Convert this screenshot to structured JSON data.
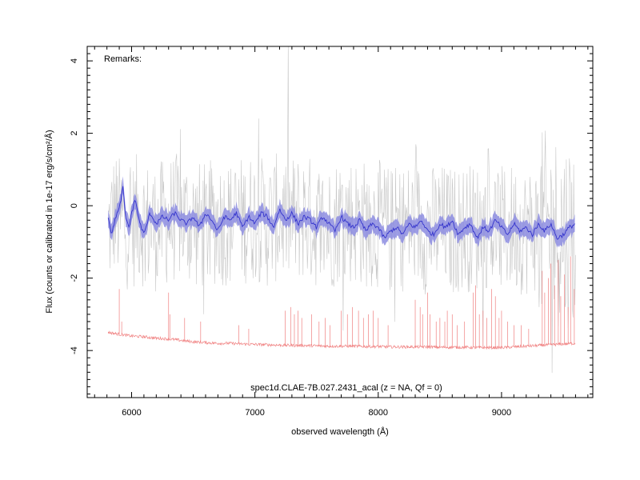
{
  "chart_data": {
    "type": "line",
    "title": "spec1d.CLAE-7B.027.2431_acal (z =   NA, Qf = 0)",
    "remarks": "Remarks:",
    "xlabel": "observed wavelength (Å)",
    "ylabel": "Flux (counts or calibrated in 1e-17 erg/s/cm²/Å)",
    "xlim": [
      5640,
      9740
    ],
    "ylim": [
      -5.3,
      4.4
    ],
    "x_ticks": [
      6000,
      7000,
      8000,
      9000
    ],
    "y_ticks": [
      4,
      2,
      0,
      -2,
      -4
    ],
    "grid": false,
    "colors": {
      "raw": "#c8c8c8",
      "smoothed": "#3333cc",
      "band": "#8c8ce0",
      "noise": "#f08080"
    },
    "series": [
      {
        "role": "raw flux (gray)",
        "x": [
          5810,
          5860,
          5900,
          5950,
          6000,
          6050,
          6100,
          6200,
          6300,
          6400,
          6500,
          6600,
          6700,
          6800,
          6900,
          7000,
          7100,
          7200,
          7300,
          7400,
          7500,
          7600,
          7700,
          7800,
          7900,
          8000,
          8100,
          8200,
          8300,
          8400,
          8500,
          8600,
          8700,
          8800,
          8900,
          9000,
          9100,
          9200,
          9300,
          9400,
          9500,
          9600
        ],
        "y": [
          -0.7,
          -0.2,
          -0.4,
          -0.5,
          -0.6,
          -0.3,
          -0.5,
          -0.6,
          -0.4,
          -0.3,
          -0.5,
          -0.6,
          -0.4,
          -0.5,
          -0.4,
          -0.3,
          -0.5,
          -0.3,
          -0.4,
          -0.3,
          -0.5,
          -0.6,
          -0.3,
          -0.4,
          -0.5,
          -0.5,
          -0.7,
          -0.6,
          -0.5,
          -0.7,
          -0.6,
          -0.7,
          -0.6,
          -0.6,
          -0.5,
          -0.7,
          -0.6,
          -0.7,
          -0.6,
          -0.6,
          -0.7,
          -0.7
        ],
        "scatter": 1.8
      },
      {
        "role": "smoothed flux (blue)",
        "x": [
          5810,
          5840,
          5870,
          5900,
          5930,
          5950,
          5980,
          6000,
          6030,
          6060,
          6100,
          6150,
          6200,
          6250,
          6300,
          6350,
          6400,
          6450,
          6500,
          6550,
          6600,
          6650,
          6700,
          6750,
          6800,
          6850,
          6900,
          6950,
          7000,
          7050,
          7100,
          7150,
          7200,
          7250,
          7300,
          7350,
          7400,
          7450,
          7500,
          7550,
          7600,
          7650,
          7700,
          7750,
          7800,
          7850,
          7900,
          7950,
          8000,
          8050,
          8100,
          8150,
          8200,
          8250,
          8300,
          8350,
          8400,
          8450,
          8500,
          8550,
          8600,
          8650,
          8700,
          8750,
          8800,
          8850,
          8900,
          8950,
          9000,
          9050,
          9100,
          9150,
          9200,
          9250,
          9300,
          9350,
          9400,
          9450,
          9500,
          9550,
          9600
        ],
        "y": [
          -0.3,
          -0.8,
          -0.3,
          -0.1,
          0.5,
          -0.3,
          -0.6,
          -0.2,
          0.2,
          -0.4,
          -0.8,
          -0.2,
          -0.5,
          -0.3,
          -0.4,
          -0.2,
          -0.4,
          -0.5,
          -0.3,
          -0.6,
          -0.2,
          -0.4,
          -0.7,
          -0.3,
          -0.4,
          -0.2,
          -0.6,
          -0.3,
          -0.5,
          -0.2,
          -0.3,
          -0.6,
          -0.1,
          -0.4,
          -0.2,
          -0.5,
          -0.3,
          -0.4,
          -0.6,
          -0.3,
          -0.5,
          -0.7,
          -0.3,
          -0.5,
          -0.6,
          -0.4,
          -0.7,
          -0.5,
          -0.6,
          -0.9,
          -0.7,
          -0.6,
          -0.8,
          -0.5,
          -0.6,
          -0.4,
          -0.7,
          -0.8,
          -0.5,
          -0.6,
          -0.4,
          -0.8,
          -0.6,
          -0.5,
          -0.9,
          -0.6,
          -0.7,
          -0.4,
          -0.6,
          -0.8,
          -0.5,
          -0.7,
          -0.6,
          -0.8,
          -0.5,
          -0.7,
          -0.5,
          -0.9,
          -0.8,
          -0.6,
          -0.5
        ],
        "sigma": 0.22
      },
      {
        "role": "noise (red)",
        "x": [
          5810,
          5900,
          6000,
          6100,
          6200,
          6300,
          6400,
          6500,
          6600,
          6700,
          6800,
          6900,
          7000,
          7100,
          7200,
          7300,
          7400,
          7500,
          7600,
          7700,
          7800,
          7900,
          8000,
          8100,
          8200,
          8300,
          8400,
          8500,
          8600,
          8700,
          8800,
          8900,
          9000,
          9100,
          9200,
          9300,
          9400,
          9500,
          9600
        ],
        "y": [
          -3.5,
          -3.55,
          -3.6,
          -3.62,
          -3.66,
          -3.68,
          -3.72,
          -3.76,
          -3.78,
          -3.8,
          -3.8,
          -3.82,
          -3.83,
          -3.84,
          -3.85,
          -3.86,
          -3.86,
          -3.87,
          -3.88,
          -3.88,
          -3.88,
          -3.89,
          -3.89,
          -3.9,
          -3.9,
          -3.9,
          -3.9,
          -3.91,
          -3.91,
          -3.91,
          -3.92,
          -3.92,
          -3.92,
          -3.9,
          -3.88,
          -3.86,
          -3.84,
          -3.82,
          -3.8
        ],
        "spikes": [
          [
            5900,
            -2.3
          ],
          [
            5920,
            -3.2
          ],
          [
            6300,
            -2.4
          ],
          [
            6310,
            -3.0
          ],
          [
            6430,
            -3.1
          ],
          [
            6560,
            -3.2
          ],
          [
            6870,
            -3.3
          ],
          [
            6950,
            -3.4
          ],
          [
            7245,
            -2.9
          ],
          [
            7290,
            -2.8
          ],
          [
            7320,
            -3.0
          ],
          [
            7350,
            -2.9
          ],
          [
            7380,
            -3.1
          ],
          [
            7460,
            -3.0
          ],
          [
            7520,
            -3.2
          ],
          [
            7570,
            -3.1
          ],
          [
            7610,
            -3.3
          ],
          [
            7700,
            -2.9
          ],
          [
            7750,
            -3.0
          ],
          [
            7790,
            -2.8
          ],
          [
            7840,
            -2.9
          ],
          [
            7880,
            -3.1
          ],
          [
            7920,
            -3.0
          ],
          [
            7960,
            -2.9
          ],
          [
            8000,
            -3.1
          ],
          [
            8080,
            -3.3
          ],
          [
            8300,
            -2.6
          ],
          [
            8340,
            -2.8
          ],
          [
            8360,
            -3.0
          ],
          [
            8400,
            -2.4
          ],
          [
            8420,
            -3.0
          ],
          [
            8470,
            -3.2
          ],
          [
            8500,
            -3.1
          ],
          [
            8540,
            -3.2
          ],
          [
            8560,
            -2.9
          ],
          [
            8600,
            -3.0
          ],
          [
            8640,
            -3.3
          ],
          [
            8700,
            -3.2
          ],
          [
            8770,
            -2.4
          ],
          [
            8790,
            -2.2
          ],
          [
            8820,
            -3.0
          ],
          [
            8850,
            -2.9
          ],
          [
            8880,
            -3.1
          ],
          [
            8920,
            -2.3
          ],
          [
            8950,
            -2.5
          ],
          [
            8980,
            -3.1
          ],
          [
            9000,
            -2.9
          ],
          [
            9050,
            -3.2
          ],
          [
            9100,
            -3.3
          ],
          [
            9160,
            -3.3
          ],
          [
            9220,
            -3.4
          ],
          [
            9330,
            -1.8
          ],
          [
            9350,
            -2.4
          ],
          [
            9380,
            -2.0
          ],
          [
            9400,
            -1.6
          ],
          [
            9430,
            -2.2
          ],
          [
            9460,
            -1.5
          ],
          [
            9480,
            -2.5
          ],
          [
            9510,
            -1.9
          ],
          [
            9540,
            -2.8
          ],
          [
            9560,
            -1.4
          ],
          [
            9590,
            -2.3
          ]
        ]
      }
    ]
  }
}
